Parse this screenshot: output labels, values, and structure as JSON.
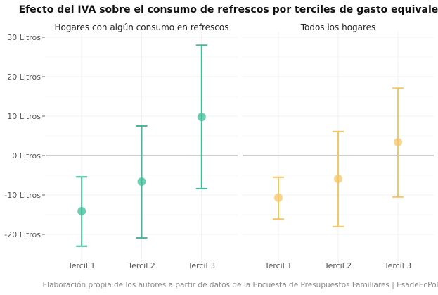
{
  "chart_data": {
    "type": "errorbar",
    "title": "Efecto del IVA sobre el consumo de refrescos por terciles de gasto equivalente",
    "caption": "Elaboración propia de los autores a partir de datos de la Encuesta de Presupuestos Familiares | EsadeEcPol",
    "ylim": [
      -26,
      30
    ],
    "yticks": [
      30,
      20,
      10,
      0,
      -10,
      -20
    ],
    "ytick_labels": [
      "30 Litros",
      "20 Litros",
      "10 Litros",
      "0 Litros",
      "-10 Litros",
      "-20 Litros"
    ],
    "categories": [
      "Tercil 1",
      "Tercil 2",
      "Tercil 3"
    ],
    "grid": true,
    "panels": [
      {
        "title": "Hogares con algún consumo en refrescos",
        "color": "#3dbd98",
        "estimate": [
          -14.1,
          -6.6,
          9.8
        ],
        "lower": [
          -23.0,
          -20.9,
          -8.4
        ],
        "upper": [
          -5.4,
          7.5,
          28.0
        ]
      },
      {
        "title": "Todos los hogares",
        "color": "#f5c665",
        "estimate": [
          -10.7,
          -5.9,
          3.4
        ],
        "lower": [
          -16.1,
          -18.0,
          -10.5
        ],
        "upper": [
          -5.5,
          6.1,
          17.1
        ]
      }
    ]
  }
}
